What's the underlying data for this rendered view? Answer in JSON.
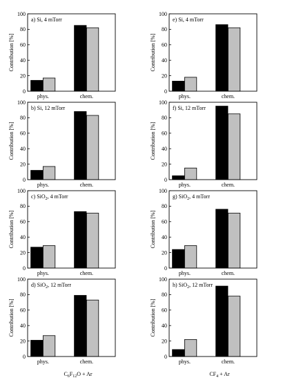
{
  "figure": {
    "bottom_labels": [
      {
        "prefix": "C",
        "sub1": "6",
        "mid": "F",
        "sub2": "12",
        "suffix": "O + Ar"
      },
      {
        "prefix": "CF",
        "sub1": "4",
        "mid": "",
        "sub2": "",
        "suffix": " + Ar"
      }
    ]
  },
  "chart_data": [
    {
      "type": "bar",
      "title": "a) Si, 4 mTorr",
      "title_main": "a) Si, 4 mTorr",
      "title_sub": "",
      "title_rest": "",
      "categories": [
        "phys.",
        "chem."
      ],
      "ylabel": "Contribution [%]",
      "ylim": [
        0,
        100
      ],
      "yticks": [
        0,
        20,
        40,
        60,
        80,
        100
      ],
      "series": [
        {
          "color": "#000000",
          "values": [
            14,
            85
          ]
        },
        {
          "color": "#c0c0c0",
          "values": [
            17,
            82
          ]
        }
      ]
    },
    {
      "type": "bar",
      "title": "b) Si, 12 mTorr",
      "title_main": "b) Si, 12 mTorr",
      "title_sub": "",
      "title_rest": "",
      "categories": [
        "phys.",
        "chem."
      ],
      "ylabel": "Contribution [%]",
      "ylim": [
        0,
        100
      ],
      "yticks": [
        0,
        20,
        40,
        60,
        80,
        100
      ],
      "series": [
        {
          "color": "#000000",
          "values": [
            12,
            88
          ]
        },
        {
          "color": "#c0c0c0",
          "values": [
            17,
            83
          ]
        }
      ]
    },
    {
      "type": "bar",
      "title": "c) SiO2, 4 mTorr",
      "title_main": "c) SiO",
      "title_sub": "2",
      "title_rest": ", 4 mTorr",
      "categories": [
        "phys.",
        "chem."
      ],
      "ylabel": "Contribution [%]",
      "ylim": [
        0,
        100
      ],
      "yticks": [
        0,
        20,
        40,
        60,
        80,
        100
      ],
      "series": [
        {
          "color": "#000000",
          "values": [
            27,
            73
          ]
        },
        {
          "color": "#c0c0c0",
          "values": [
            29,
            71
          ]
        }
      ]
    },
    {
      "type": "bar",
      "title": "d) SiO2, 12 mTorr",
      "title_main": "d) SiO",
      "title_sub": "2",
      "title_rest": ", 12 mTorr",
      "categories": [
        "phys.",
        "chem."
      ],
      "ylabel": "Contribution [%]",
      "ylim": [
        0,
        100
      ],
      "yticks": [
        0,
        20,
        40,
        60,
        80,
        100
      ],
      "series": [
        {
          "color": "#000000",
          "values": [
            21,
            79
          ]
        },
        {
          "color": "#c0c0c0",
          "values": [
            27,
            73
          ]
        }
      ]
    },
    {
      "type": "bar",
      "title": "e) Si, 4 mTorr",
      "title_main": "e) Si, 4 mTorr",
      "title_sub": "",
      "title_rest": "",
      "categories": [
        "phys.",
        "chem."
      ],
      "ylabel": "Contribution [%]",
      "ylim": [
        0,
        100
      ],
      "yticks": [
        0,
        20,
        40,
        60,
        80,
        100
      ],
      "series": [
        {
          "color": "#000000",
          "values": [
            13,
            86
          ]
        },
        {
          "color": "#c0c0c0",
          "values": [
            18,
            82
          ]
        }
      ]
    },
    {
      "type": "bar",
      "title": "f) Si, 12 mTorr",
      "title_main": "f) Si, 12 mTorr",
      "title_sub": "",
      "title_rest": "",
      "categories": [
        "phys.",
        "chem."
      ],
      "ylabel": "Contribution [%]",
      "ylim": [
        0,
        100
      ],
      "yticks": [
        0,
        20,
        40,
        60,
        80,
        100
      ],
      "series": [
        {
          "color": "#000000",
          "values": [
            5,
            95
          ]
        },
        {
          "color": "#c0c0c0",
          "values": [
            15,
            85
          ]
        }
      ]
    },
    {
      "type": "bar",
      "title": "g) SiO2, 4 mTorr",
      "title_main": "g) SiO",
      "title_sub": "2",
      "title_rest": ", 4 mTorr",
      "categories": [
        "phys.",
        "chem."
      ],
      "ylabel": "Contribution [%]",
      "ylim": [
        0,
        100
      ],
      "yticks": [
        0,
        20,
        40,
        60,
        80,
        100
      ],
      "series": [
        {
          "color": "#000000",
          "values": [
            24,
            76
          ]
        },
        {
          "color": "#c0c0c0",
          "values": [
            29,
            71
          ]
        }
      ]
    },
    {
      "type": "bar",
      "title": "h) SiO2, 12 mTorr",
      "title_main": "h) SiO",
      "title_sub": "2",
      "title_rest": ", 12 mTorr",
      "categories": [
        "phys.",
        "chem."
      ],
      "ylabel": "Contribution [%]",
      "ylim": [
        0,
        100
      ],
      "yticks": [
        0,
        20,
        40,
        60,
        80,
        100
      ],
      "series": [
        {
          "color": "#000000",
          "values": [
            9,
            91
          ]
        },
        {
          "color": "#c0c0c0",
          "values": [
            22,
            78
          ]
        }
      ]
    }
  ]
}
